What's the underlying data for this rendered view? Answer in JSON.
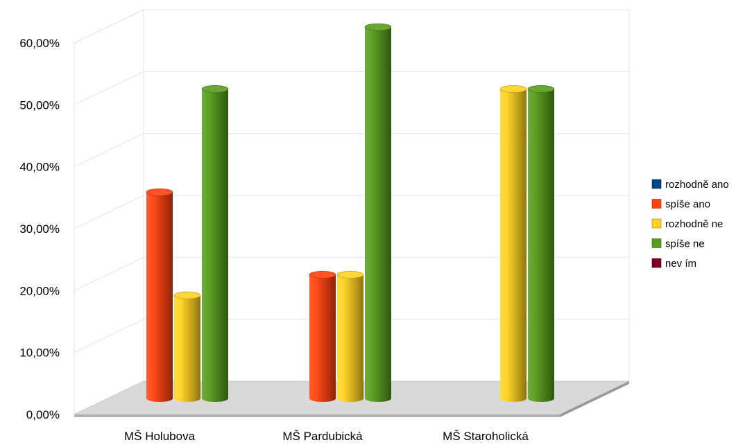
{
  "chart_data": {
    "type": "bar",
    "style": "3d-cylinder",
    "title": "",
    "xlabel": "",
    "ylabel": "",
    "ylim": [
      0,
      60
    ],
    "y_ticks": [
      "0,00%",
      "10,00%",
      "20,00%",
      "30,00%",
      "40,00%",
      "50,00%",
      "60,00%"
    ],
    "y_tick_values": [
      0,
      10,
      20,
      30,
      40,
      50,
      60
    ],
    "grid": true,
    "legend_position": "right",
    "categories": [
      "MŠ Holubova",
      "MŠ Pardubická",
      "MŠ Staroholická"
    ],
    "series": [
      {
        "name": "rozhodně ano",
        "color": "#004586",
        "values": [
          0,
          0,
          0
        ]
      },
      {
        "name": "spíše ano",
        "color": "#ff420e",
        "values": [
          33.33,
          20,
          0
        ]
      },
      {
        "name": "rozhodně ne",
        "color": "#ffd320",
        "values": [
          16.67,
          20,
          50
        ]
      },
      {
        "name": "spíše ne",
        "color": "#579d1c",
        "values": [
          50,
          60,
          50
        ]
      },
      {
        "name": "nev ím",
        "color": "#7e0021",
        "values": [
          0,
          0,
          0
        ]
      }
    ]
  }
}
